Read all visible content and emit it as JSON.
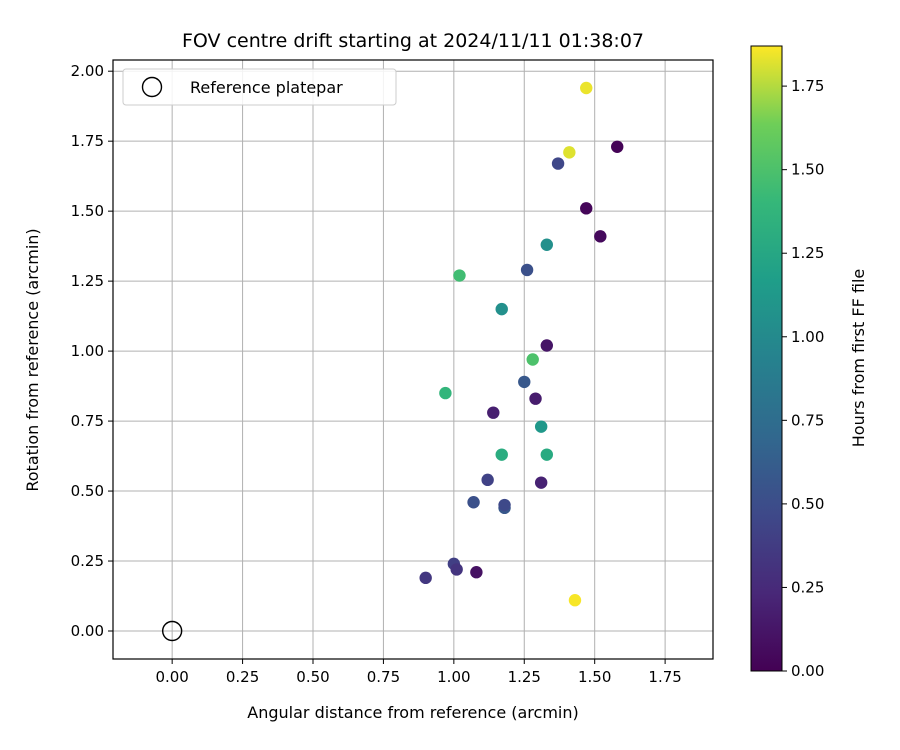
{
  "chart_data": {
    "type": "scatter",
    "title": "FOV centre drift starting at 2024/11/11 01:38:07",
    "xlabel": "Angular distance from reference (arcmin)",
    "ylabel": "Rotation from reference (arcmin)",
    "xlim": [
      -0.21,
      1.92
    ],
    "ylim": [
      -0.1,
      2.04
    ],
    "x_ticks": [
      "0.00",
      "0.25",
      "0.50",
      "0.75",
      "1.00",
      "1.25",
      "1.50",
      "1.75"
    ],
    "y_ticks": [
      "0.00",
      "0.25",
      "0.50",
      "0.75",
      "1.00",
      "1.25",
      "1.50",
      "1.75",
      "2.00"
    ],
    "grid": true,
    "legend": {
      "position": "top-left",
      "entries": [
        {
          "label": "Reference platepar",
          "marker": "open-circle"
        }
      ]
    },
    "reference_point": {
      "x": 0.0,
      "y": 0.0
    },
    "colorbar": {
      "label": "Hours from first FF file",
      "colormap": "viridis",
      "range": [
        0.0,
        1.87
      ],
      "ticks": [
        "0.00",
        "0.25",
        "0.50",
        "0.75",
        "1.00",
        "1.25",
        "1.50",
        "1.75"
      ]
    },
    "points": [
      {
        "x": 1.47,
        "y": 1.94,
        "hours": 1.84
      },
      {
        "x": 1.41,
        "y": 1.71,
        "hours": 1.82
      },
      {
        "x": 1.58,
        "y": 1.73,
        "hours": 0.01
      },
      {
        "x": 1.37,
        "y": 1.67,
        "hours": 0.45
      },
      {
        "x": 1.47,
        "y": 1.51,
        "hours": 0.03
      },
      {
        "x": 1.52,
        "y": 1.41,
        "hours": 0.05
      },
      {
        "x": 1.33,
        "y": 1.38,
        "hours": 1.05
      },
      {
        "x": 1.26,
        "y": 1.29,
        "hours": 0.52
      },
      {
        "x": 1.02,
        "y": 1.27,
        "hours": 1.45
      },
      {
        "x": 1.17,
        "y": 1.15,
        "hours": 1.05
      },
      {
        "x": 1.33,
        "y": 1.02,
        "hours": 0.12
      },
      {
        "x": 1.28,
        "y": 0.97,
        "hours": 1.5
      },
      {
        "x": 1.25,
        "y": 0.89,
        "hours": 0.58
      },
      {
        "x": 0.97,
        "y": 0.85,
        "hours": 1.38
      },
      {
        "x": 1.29,
        "y": 0.83,
        "hours": 0.16
      },
      {
        "x": 1.14,
        "y": 0.78,
        "hours": 0.18
      },
      {
        "x": 1.31,
        "y": 0.73,
        "hours": 1.12
      },
      {
        "x": 1.17,
        "y": 0.63,
        "hours": 1.3
      },
      {
        "x": 1.33,
        "y": 0.63,
        "hours": 1.28
      },
      {
        "x": 1.12,
        "y": 0.54,
        "hours": 0.42
      },
      {
        "x": 1.31,
        "y": 0.53,
        "hours": 0.2
      },
      {
        "x": 1.07,
        "y": 0.46,
        "hours": 0.52
      },
      {
        "x": 1.18,
        "y": 0.44,
        "hours": 0.58
      },
      {
        "x": 1.18,
        "y": 0.45,
        "hours": 0.47
      },
      {
        "x": 1.0,
        "y": 0.24,
        "hours": 0.4
      },
      {
        "x": 1.01,
        "y": 0.22,
        "hours": 0.32
      },
      {
        "x": 1.08,
        "y": 0.21,
        "hours": 0.1
      },
      {
        "x": 0.9,
        "y": 0.19,
        "hours": 0.34
      },
      {
        "x": 1.43,
        "y": 0.11,
        "hours": 1.86
      }
    ]
  }
}
